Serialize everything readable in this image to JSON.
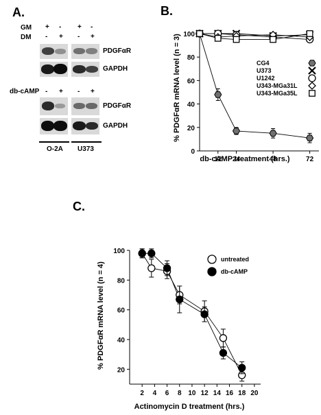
{
  "panelA": {
    "letter": "A.",
    "gm_label": "GM",
    "dm_label": "DM",
    "dbcamp_label": "db-cAMP",
    "gm_signs": [
      "+",
      "-",
      "+",
      "-"
    ],
    "dm_signs": [
      "-",
      "+",
      "-",
      "+"
    ],
    "dbcamp_signs": [
      "-",
      "+",
      "-",
      "+"
    ],
    "pdgf1": "PDGFαR",
    "gapdh1": "GAPDH",
    "pdgf2": "PDGFαR",
    "gapdh2": "GAPDH",
    "cell_line_1": "O-2A",
    "cell_line_2": "U373"
  },
  "chart_data": [
    {
      "type": "line",
      "panel": "B.",
      "xlabel": "db-cAMP treatment (hrs.)",
      "ylabel": "% PDGFαR mRNA level (n = 3)",
      "xlim": [
        0,
        78
      ],
      "ylim": [
        0,
        100
      ],
      "xticks": [
        12,
        24,
        48,
        72
      ],
      "yticks": [
        0,
        20,
        40,
        60,
        80,
        100
      ],
      "x": [
        0,
        12,
        24,
        48,
        72
      ],
      "series": [
        {
          "name": "CG4",
          "marker": "hexagon",
          "values": [
            100,
            48,
            17,
            15,
            11
          ],
          "errors": [
            0,
            5,
            3,
            4,
            4
          ]
        },
        {
          "name": "U373",
          "marker": "x",
          "values": [
            100,
            100,
            100,
            98,
            99
          ],
          "errors": [
            0,
            1,
            1,
            1,
            1
          ]
        },
        {
          "name": "U1242",
          "marker": "circle",
          "values": [
            100,
            100,
            99,
            97,
            95
          ],
          "errors": [
            0,
            1,
            1,
            1,
            1
          ]
        },
        {
          "name": "U343-MGa31L",
          "marker": "diamond",
          "values": [
            100,
            97,
            98,
            99,
            97
          ],
          "errors": [
            0,
            1,
            1,
            1,
            1
          ]
        },
        {
          "name": "U343-MGa35L",
          "marker": "square",
          "values": [
            100,
            96,
            95,
            95,
            100
          ],
          "errors": [
            0,
            1,
            1,
            1,
            1
          ]
        }
      ]
    },
    {
      "type": "line",
      "panel": "C.",
      "xlabel": "Actinomycin D treatment (hrs.)",
      "ylabel": "% PDGFαR mRNA level (n = 4)",
      "xlim": [
        0,
        21
      ],
      "ylim": [
        10,
        100
      ],
      "xticks": [
        2,
        4,
        6,
        8,
        10,
        12,
        14,
        16,
        18,
        20
      ],
      "yticks": [
        20,
        40,
        60,
        80,
        100
      ],
      "series": [
        {
          "name": "untreated",
          "marker": "open-circle",
          "x": [
            2,
            3.5,
            6,
            8,
            12,
            15,
            18
          ],
          "values": [
            98,
            88,
            86,
            70,
            59,
            41,
            16
          ],
          "errors": [
            3,
            6,
            5,
            6,
            7,
            6,
            4
          ]
        },
        {
          "name": "db-cAMP",
          "marker": "filled-circle",
          "x": [
            2,
            3.5,
            6,
            8,
            12,
            15,
            18
          ],
          "values": [
            98,
            98,
            88,
            67,
            57,
            31,
            21
          ],
          "errors": [
            3,
            3,
            5,
            9,
            5,
            4,
            4
          ]
        }
      ]
    }
  ]
}
